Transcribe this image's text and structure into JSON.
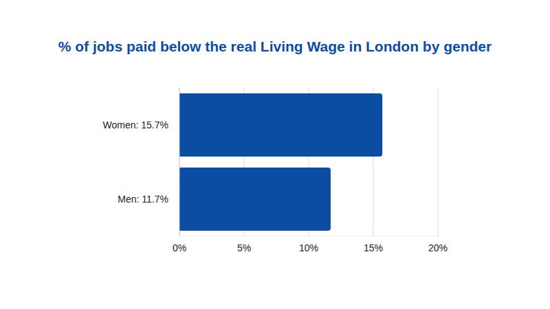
{
  "chart_data": {
    "type": "bar",
    "title": "% of jobs paid below the real Living Wage in London by gender",
    "orientation": "horizontal",
    "categories": [
      "Women: 15.7%",
      "Men: 11.7%"
    ],
    "values": [
      15.7,
      11.7
    ],
    "color": "#0b4da2",
    "xlim": [
      0,
      20
    ],
    "xticks": [
      {
        "value": 0,
        "label": "0%"
      },
      {
        "value": 5,
        "label": "5%"
      },
      {
        "value": 10,
        "label": "10%"
      },
      {
        "value": 15,
        "label": "15%"
      },
      {
        "value": 20,
        "label": "20%"
      }
    ],
    "grid": true
  }
}
